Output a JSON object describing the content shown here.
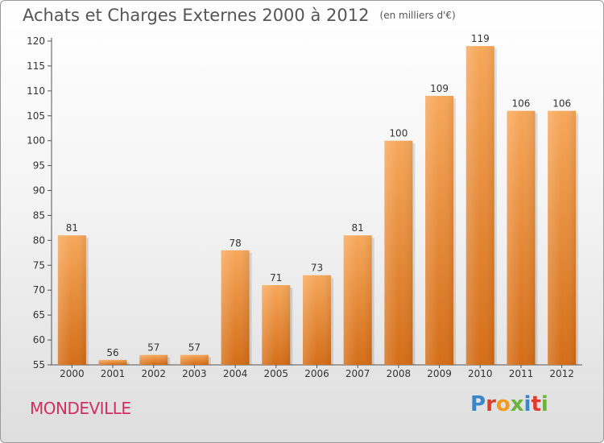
{
  "title": "Achats et Charges Externes 2000 à 2012",
  "subtitle": "(en milliers d'€)",
  "town": "MONDEVILLE",
  "logo": {
    "text": "Proxiti",
    "colors": [
      "#3a86c8",
      "#e23b2e",
      "#f29b1d",
      "#6cb33e",
      "#3a86c8",
      "#e23b2e",
      "#6cb33e"
    ]
  },
  "colors": {
    "bar_top": "#f7a85a",
    "bar_bottom": "#d46d17",
    "axis_text": "#333333",
    "grid": "#c8c8c8"
  },
  "chart_data": {
    "type": "bar",
    "title": "Achats et Charges Externes 2000 à 2012",
    "subtitle": "(en milliers d'€)",
    "categories": [
      "2000",
      "2001",
      "2002",
      "2003",
      "2004",
      "2005",
      "2006",
      "2007",
      "2008",
      "2009",
      "2010",
      "2011",
      "2012"
    ],
    "values": [
      81,
      56,
      57,
      57,
      78,
      71,
      73,
      81,
      100,
      109,
      119,
      106,
      106
    ],
    "ylim": [
      55,
      120
    ],
    "yticks": [
      55,
      60,
      65,
      70,
      75,
      80,
      85,
      90,
      95,
      100,
      105,
      110,
      115,
      120
    ],
    "grid": false,
    "data_labels": true
  }
}
